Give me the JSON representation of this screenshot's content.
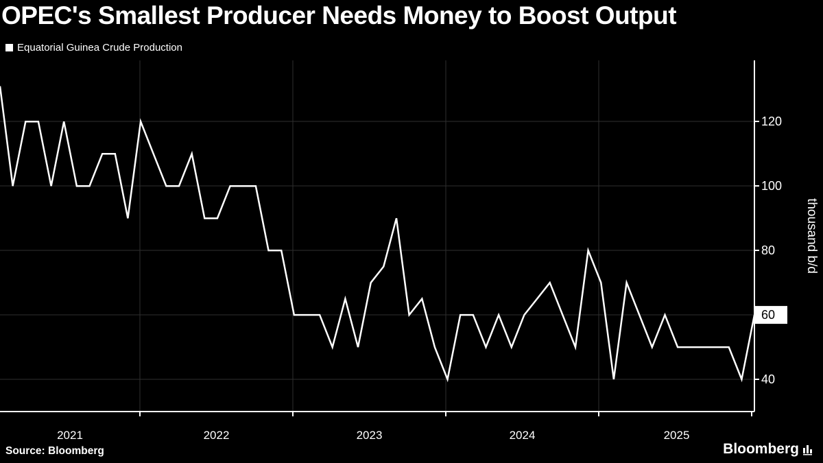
{
  "header": {
    "title": "OPEC's Smallest Producer Needs Money to Boost Output"
  },
  "legend": {
    "label": "Equatorial Guinea Crude Production"
  },
  "footer": {
    "source": "Source: Bloomberg",
    "brand": "Bloomberg"
  },
  "chart_data": {
    "type": "line",
    "title": "OPEC's Smallest Producer Needs Money to Boost Output",
    "series": [
      {
        "name": "Equatorial Guinea Crude Production",
        "color": "#ffffff",
        "values": [
          131,
          100,
          120,
          120,
          100,
          120,
          100,
          100,
          110,
          110,
          90,
          120,
          110,
          100,
          100,
          110,
          90,
          90,
          100,
          100,
          100,
          80,
          80,
          60,
          60,
          60,
          50,
          65,
          50,
          70,
          75,
          90,
          60,
          65,
          50,
          40,
          60,
          60,
          50,
          60,
          50,
          60,
          65,
          70,
          60,
          50,
          80,
          70,
          40,
          70,
          60,
          50,
          60,
          50,
          50,
          50,
          50,
          50,
          40,
          60
        ]
      }
    ],
    "x_tick_labels": [
      "2021",
      "2022",
      "2023",
      "2024",
      "2025"
    ],
    "y_ticks": [
      40,
      60,
      80,
      100,
      120
    ],
    "ylim": [
      30,
      139
    ],
    "ylabel": "thousand b/d",
    "last_value": 60,
    "grid": true,
    "legend_position": "top-left",
    "colors": {
      "background": "#000000",
      "grid": "#2f2f2f",
      "axis": "#ffffff",
      "line": "#ffffff",
      "highlight_bg": "#ffffff",
      "highlight_text": "#000000"
    }
  }
}
